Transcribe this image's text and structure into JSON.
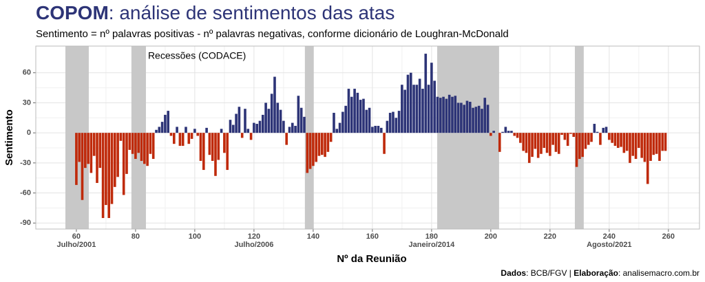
{
  "chart_data": {
    "type": "bar",
    "title_parts": [
      "COPOM",
      ": análise de sentimentos das atas"
    ],
    "subtitle": "Sentimento = nº palavras positivas - nº palavras negativas, conforme dicionário de Loughran-McDonald",
    "xlabel": "Nº da Reunião",
    "ylabel": "Sentimento",
    "caption_parts": [
      "Dados",
      ": BCB/FGV | ",
      "Elaboração",
      ": analisemacro.com.br"
    ],
    "recession_label": "Recessões (CODACE)",
    "recessions": [
      [
        56.3,
        64.2
      ],
      [
        78.6,
        83.5
      ],
      [
        137.2,
        140.2
      ],
      [
        181.9,
        202.8
      ],
      [
        228.4,
        231.4
      ]
    ],
    "date_labels": [
      {
        "x": 60,
        "label": "Julho/2001"
      },
      {
        "x": 120,
        "label": "Julho/2006"
      },
      {
        "x": 180,
        "label": "Janeiro/2014"
      },
      {
        "x": 240,
        "label": "Agosto/2021"
      }
    ],
    "x": [
      60,
      61,
      62,
      63,
      64,
      65,
      66,
      67,
      68,
      69,
      70,
      71,
      72,
      73,
      74,
      75,
      76,
      77,
      78,
      79,
      80,
      81,
      82,
      83,
      84,
      85,
      86,
      87,
      88,
      89,
      90,
      91,
      92,
      93,
      94,
      95,
      96,
      97,
      98,
      99,
      100,
      101,
      102,
      103,
      104,
      105,
      106,
      107,
      108,
      109,
      110,
      111,
      112,
      113,
      114,
      115,
      116,
      117,
      118,
      119,
      120,
      121,
      122,
      123,
      124,
      125,
      126,
      127,
      128,
      129,
      130,
      131,
      132,
      133,
      134,
      135,
      136,
      137,
      138,
      139,
      140,
      141,
      142,
      143,
      144,
      145,
      146,
      147,
      148,
      149,
      150,
      151,
      152,
      153,
      154,
      155,
      156,
      157,
      158,
      159,
      160,
      161,
      162,
      163,
      164,
      165,
      166,
      167,
      168,
      169,
      170,
      171,
      172,
      173,
      174,
      175,
      176,
      177,
      178,
      179,
      180,
      181,
      182,
      183,
      184,
      185,
      186,
      187,
      188,
      189,
      190,
      191,
      192,
      193,
      194,
      195,
      196,
      197,
      198,
      199,
      200,
      201,
      202,
      203,
      204,
      205,
      206,
      207,
      208,
      209,
      210,
      211,
      212,
      213,
      214,
      215,
      216,
      217,
      218,
      219,
      220,
      221,
      222,
      223,
      224,
      225,
      226,
      227,
      228,
      229,
      230,
      231,
      232,
      233,
      234,
      235,
      236,
      237,
      238,
      239,
      240,
      241,
      242,
      243,
      244,
      245,
      246,
      247,
      248,
      249,
      250,
      251,
      252,
      253,
      254,
      255,
      256,
      257,
      258,
      259
    ],
    "values": [
      -52,
      -29,
      -67,
      -35,
      -31,
      -40,
      -23,
      -50,
      -35,
      -85,
      -72,
      -85,
      -71,
      -54,
      -44,
      -8,
      -62,
      -41,
      -17,
      -21,
      -26,
      -20,
      -28,
      -31,
      -33,
      -21,
      -26,
      3,
      6,
      11,
      18,
      22,
      -3,
      -11,
      6,
      -13,
      -13,
      6,
      -11,
      -6,
      4,
      -3,
      -28,
      -37,
      5,
      -22,
      -28,
      -43,
      -27,
      4,
      -20,
      -37,
      13,
      8,
      19,
      26,
      -5,
      24,
      4,
      -7,
      10,
      9,
      12,
      18,
      30,
      24,
      39,
      56,
      30,
      23,
      12,
      -12,
      6,
      10,
      7,
      37,
      25,
      16,
      -40,
      -36,
      -33,
      -29,
      -23,
      -22,
      -24,
      -19,
      -9,
      20,
      4,
      10,
      21,
      27,
      44,
      36,
      44,
      40,
      33,
      34,
      23,
      25,
      6,
      7,
      7,
      5,
      -21,
      12,
      20,
      21,
      15,
      22,
      48,
      43,
      58,
      60,
      48,
      48,
      54,
      44,
      79,
      48,
      70,
      52,
      36,
      35,
      36,
      34,
      38,
      36,
      37,
      30,
      30,
      28,
      32,
      31,
      25,
      26,
      27,
      24,
      35,
      28,
      -3,
      2,
      0,
      -19,
      1,
      6,
      2,
      2,
      -3,
      -5,
      -10,
      -18,
      -20,
      -30,
      -24,
      -16,
      -25,
      -21,
      -15,
      -20,
      -23,
      -12,
      -19,
      -21,
      -2,
      -7,
      -13,
      -1,
      -4,
      -34,
      -26,
      -24,
      -16,
      -12,
      -9,
      9,
      1,
      -12,
      5,
      6,
      -7,
      -10,
      -13,
      -15,
      -14,
      -20,
      -18,
      -30,
      -23,
      -26,
      -15,
      -25,
      -29,
      -51,
      -28,
      -22,
      -21,
      -28,
      -18,
      -18
    ],
    "colors": {
      "positive": "#2d3477",
      "negative": "#bf2a0b",
      "recession": "#c8c8c8"
    },
    "xlim": [
      46.3,
      270.5
    ],
    "ylim": [
      -96,
      86.6
    ],
    "xticks": [
      60,
      80,
      100,
      120,
      140,
      160,
      180,
      200,
      220,
      240,
      260
    ],
    "yticks": [
      -90,
      -60,
      -30,
      0,
      30,
      60
    ],
    "grid": true
  }
}
